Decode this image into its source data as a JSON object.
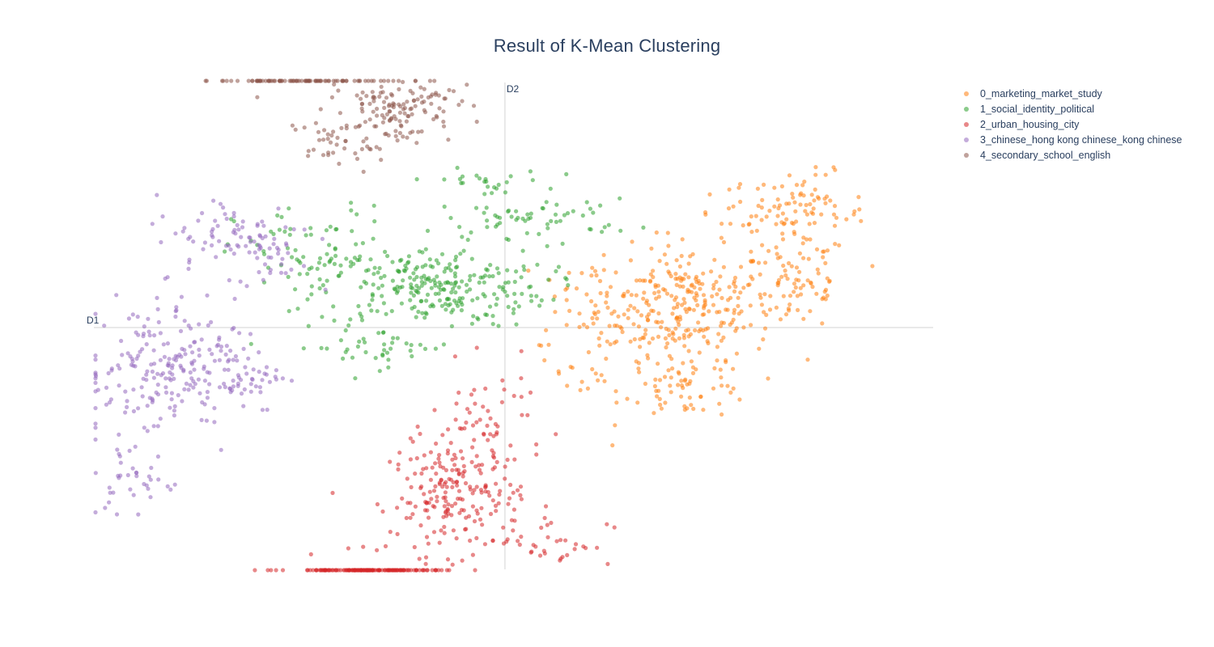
{
  "chart_data": {
    "type": "scatter",
    "title": "Result of K-Mean Clustering",
    "xlabel": "D1",
    "ylabel": "D2",
    "xlim": [
      -5.0,
      5.2
    ],
    "ylim": [
      -3.0,
      3.05
    ],
    "grid": false,
    "zero_lines": true,
    "legend_position": "top-right",
    "series": [
      {
        "name": "0_marketing_market_study",
        "color": "#ff7f0e",
        "clusters": [
          {
            "cx": 2.2,
            "cy": 0.3,
            "sx": 0.55,
            "sy": 0.35,
            "n": 260
          },
          {
            "cx": 3.7,
            "cy": 1.4,
            "sx": 0.35,
            "sy": 0.25,
            "n": 70
          },
          {
            "cx": 3.6,
            "cy": 0.55,
            "sx": 0.3,
            "sy": 0.3,
            "n": 60
          },
          {
            "cx": 3.05,
            "cy": 1.35,
            "sx": 0.4,
            "sy": 0.2,
            "n": 40
          },
          {
            "cx": 2.25,
            "cy": -0.75,
            "sx": 0.4,
            "sy": 0.18,
            "n": 60
          },
          {
            "cx": 1.0,
            "cy": 0.3,
            "sx": 0.35,
            "sy": 0.25,
            "n": 30
          },
          {
            "cx": 1.6,
            "cy": -0.25,
            "sx": 0.5,
            "sy": 0.3,
            "n": 35
          },
          {
            "cx": 0.8,
            "cy": -0.55,
            "sx": 0.2,
            "sy": 0.1,
            "n": 10
          }
        ]
      },
      {
        "name": "1_social_identity_political",
        "color": "#2ca02c",
        "clusters": [
          {
            "cx": -0.9,
            "cy": 0.5,
            "sx": 0.7,
            "sy": 0.25,
            "n": 260
          },
          {
            "cx": -2.3,
            "cy": 0.9,
            "sx": 0.5,
            "sy": 0.3,
            "n": 70
          },
          {
            "cx": 0.4,
            "cy": 1.35,
            "sx": 0.6,
            "sy": 0.12,
            "n": 60
          },
          {
            "cx": -0.3,
            "cy": 1.8,
            "sx": 0.4,
            "sy": 0.08,
            "n": 25
          },
          {
            "cx": -1.6,
            "cy": -0.25,
            "sx": 0.5,
            "sy": 0.12,
            "n": 40
          }
        ]
      },
      {
        "name": "2_urban_housing_city",
        "color": "#d62728",
        "clusters": [
          {
            "cx": -0.6,
            "cy": -2.1,
            "sx": 0.4,
            "sy": 0.35,
            "n": 200
          },
          {
            "cx": -0.2,
            "cy": -1.2,
            "sx": 0.35,
            "sy": 0.35,
            "n": 60
          },
          {
            "cx": -1.7,
            "cy": -4.3,
            "sx": 0.45,
            "sy": 0.6,
            "n": 150
          },
          {
            "cx": 0.6,
            "cy": -2.65,
            "sx": 0.35,
            "sy": 0.15,
            "n": 30
          }
        ]
      },
      {
        "name": "3_chinese_hong kong chinese_kong chinese",
        "color": "#9467bd",
        "clusters": [
          {
            "cx": -4.3,
            "cy": -0.55,
            "sx": 0.5,
            "sy": 0.45,
            "n": 160
          },
          {
            "cx": -3.5,
            "cy": -0.55,
            "sx": 0.4,
            "sy": 0.25,
            "n": 90
          },
          {
            "cx": -3.3,
            "cy": 1.15,
            "sx": 0.5,
            "sy": 0.25,
            "n": 70
          },
          {
            "cx": -2.9,
            "cy": 0.9,
            "sx": 0.25,
            "sy": 0.2,
            "n": 30
          },
          {
            "cx": -4.55,
            "cy": -1.9,
            "sx": 0.3,
            "sy": 0.25,
            "n": 35
          }
        ]
      },
      {
        "name": "4_secondary_school_english",
        "color": "#8c564b",
        "clusters": [
          {
            "cx": -1.3,
            "cy": 2.75,
            "sx": 0.35,
            "sy": 0.25,
            "n": 130
          },
          {
            "cx": -2.55,
            "cy": 3.45,
            "sx": 0.45,
            "sy": 0.2,
            "n": 80
          },
          {
            "cx": -2.15,
            "cy": 2.3,
            "sx": 0.25,
            "sy": 0.15,
            "n": 30
          },
          {
            "cx": -1.8,
            "cy": 2.6,
            "sx": 0.3,
            "sy": 0.3,
            "n": 20
          }
        ]
      }
    ]
  }
}
